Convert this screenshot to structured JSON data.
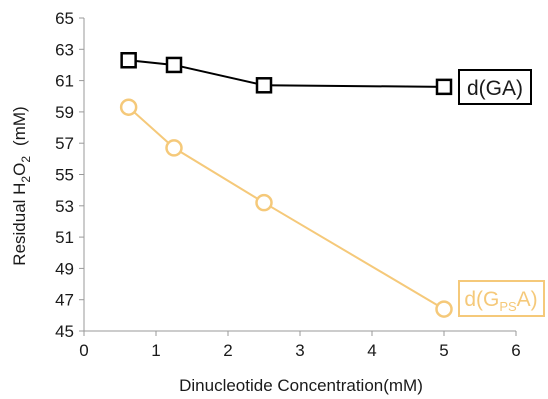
{
  "chart_data": {
    "type": "line",
    "title": "",
    "xlabel": "Dinucleotide Concentration(mM)",
    "ylabel": {
      "prefix": "Residual H",
      "sub1": "2",
      "mid": "O",
      "sub2": "2",
      "suffix": "(mM)"
    },
    "xlim": [
      0,
      6
    ],
    "ylim": [
      45,
      65
    ],
    "xticks": [
      0,
      1,
      2,
      3,
      4,
      5,
      6
    ],
    "yticks": [
      45,
      47,
      49,
      51,
      53,
      55,
      57,
      59,
      61,
      63,
      65
    ],
    "grid": false,
    "series": [
      {
        "name": "d(GA)",
        "name_parts": {
          "main": "d(GA)"
        },
        "color": "#000000",
        "marker": "square",
        "x": [
          0.62,
          1.25,
          2.5,
          5
        ],
        "y": [
          62.3,
          62.0,
          60.7,
          60.6
        ]
      },
      {
        "name": "d(GPSA)",
        "name_parts": {
          "pre": "d(G",
          "sub": "PS",
          "post": "A)"
        },
        "color": "#F5C97A",
        "marker": "circle",
        "x": [
          0.62,
          1.25,
          2.5,
          5
        ],
        "y": [
          59.3,
          56.7,
          53.2,
          46.4
        ]
      }
    ]
  }
}
